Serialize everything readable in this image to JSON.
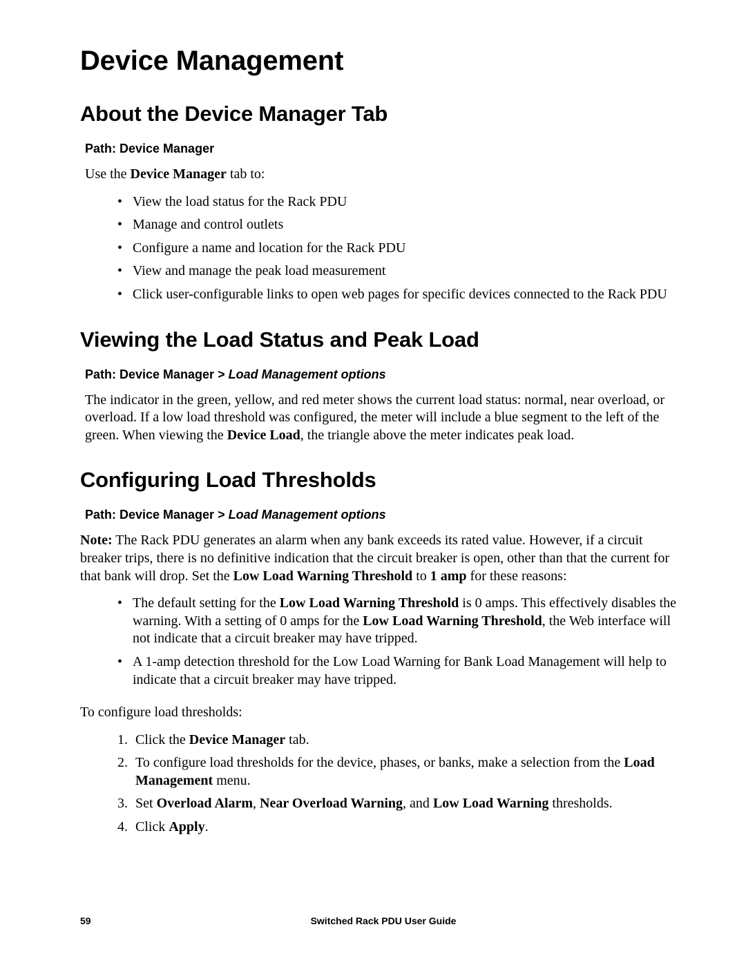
{
  "title": "Device Management",
  "sections": {
    "about": {
      "heading": "About the Device Manager Tab",
      "path_prefix": "Path: ",
      "path": "Device Manager",
      "intro_pre": "Use the ",
      "intro_bold": "Device Manager",
      "intro_post": " tab to:",
      "bullets": [
        "View the load status for the Rack PDU",
        "Manage and control outlets",
        "Configure a name and location for the Rack PDU",
        "View and manage the peak load measurement",
        "Click user-configurable links to open web pages for specific devices connected to the Rack PDU"
      ]
    },
    "viewing": {
      "heading": "Viewing the Load Status and Peak Load",
      "path_prefix": "Path: Device Manager > ",
      "path_ital": "Load Management options",
      "para_pre": "The indicator in the green, yellow, and red meter shows the current load status: normal, near overload, or overload. If a low load threshold was configured, the meter will include a blue segment to the left of the green. When viewing the ",
      "para_bold": "Device Load",
      "para_post": ", the triangle above the meter indicates peak load."
    },
    "config": {
      "heading": "Configuring Load Thresholds",
      "path_prefix": "Path: Device Manager > ",
      "path_ital": "Load Management options",
      "note_label": "Note:",
      "note_1": " The Rack PDU generates an alarm when any bank exceeds its rated value. However, if a circuit breaker trips, there is no definitive indication that the circuit breaker is open, other than that the current for that bank will drop. Set the ",
      "note_b1": "Low Load Warning Threshold",
      "note_2": " to ",
      "note_b2": "1 amp",
      "note_3": " for these reasons:",
      "bullets": {
        "b1_1": "The default setting for the ",
        "b1_b1": "Low Load Warning Threshold",
        "b1_2": " is 0 amps. This effectively disables the warning. With a setting of 0 amps for the ",
        "b1_b2": "Low Load Warning Threshold",
        "b1_3": ", the Web interface will not indicate that a circuit breaker may have tripped.",
        "b2": "A 1-amp detection threshold for the Low Load Warning for Bank Load Management will help to indicate that a circuit breaker may have tripped."
      },
      "to_configure": "To configure load thresholds:",
      "steps": {
        "s1_1": "Click the ",
        "s1_b": "Device Manager",
        "s1_2": " tab.",
        "s2_1": "To configure load thresholds for the device, phases, or banks, make a selection from the ",
        "s2_b": "Load Management",
        "s2_2": " menu.",
        "s3_1": "Set ",
        "s3_b1": "Overload Alarm",
        "s3_2": ", ",
        "s3_b2": "Near Overload Warning",
        "s3_3": ", and ",
        "s3_b3": "Low Load Warning",
        "s3_4": " thresholds.",
        "s4_1": "Click ",
        "s4_b": "Apply",
        "s4_2": "."
      }
    }
  },
  "footer": {
    "page_number": "59",
    "doc_title": "Switched Rack PDU User Guide"
  }
}
